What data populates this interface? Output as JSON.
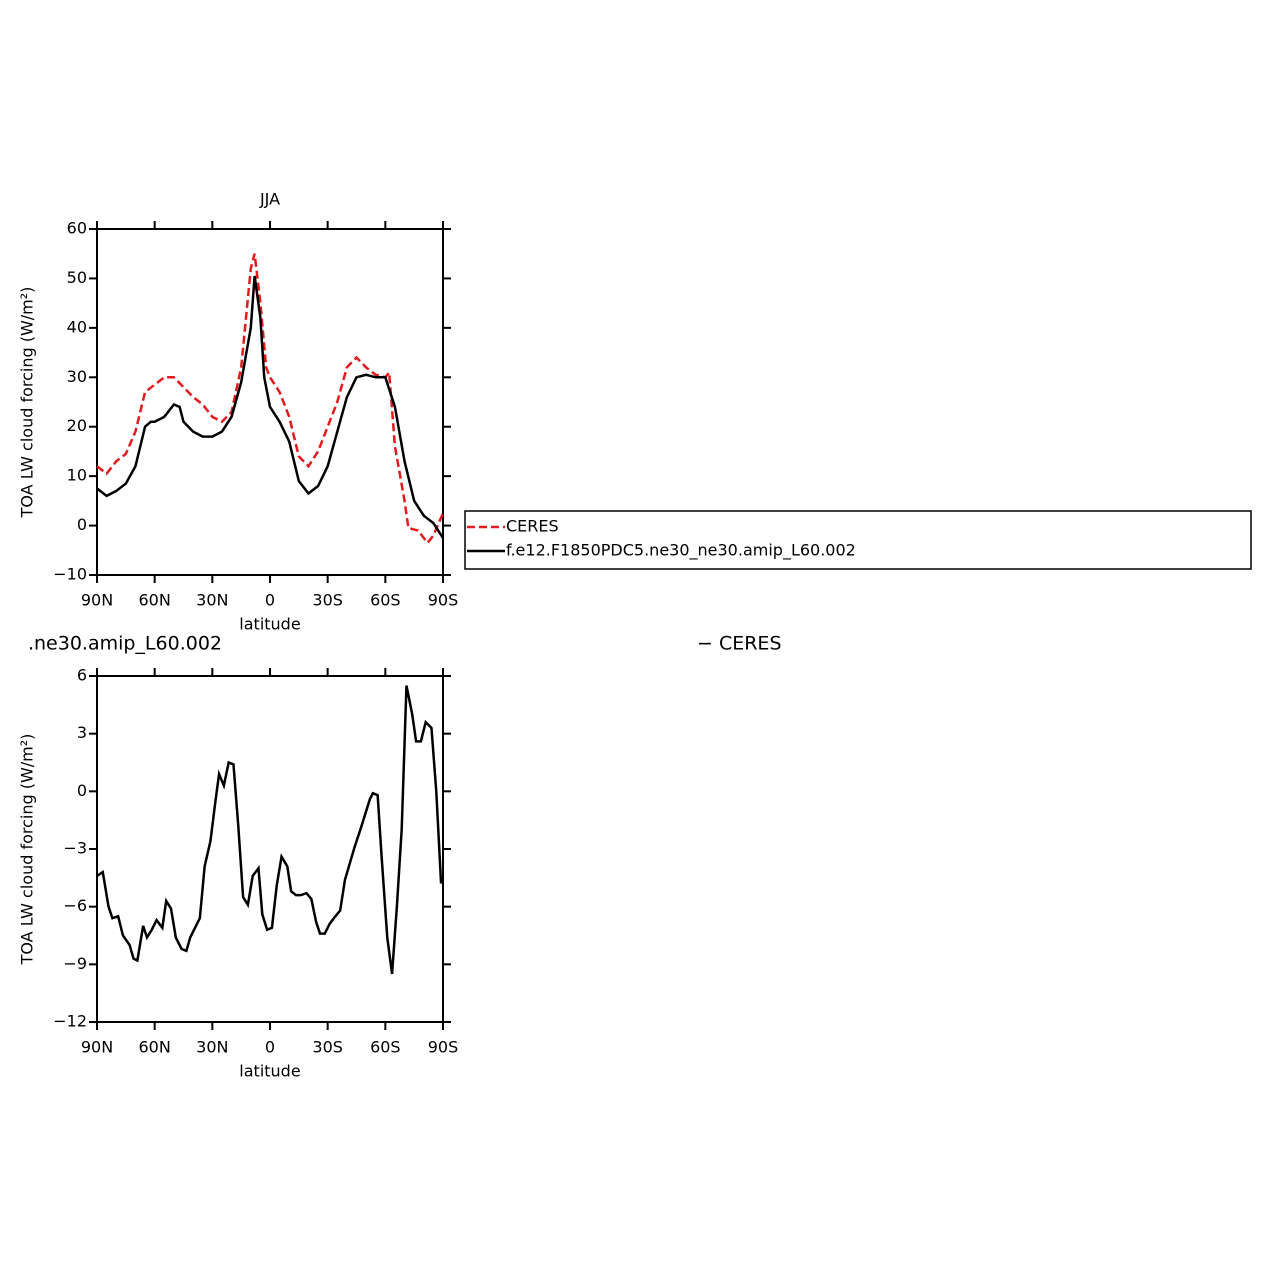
{
  "chart_data": [
    {
      "type": "line",
      "title": "JJA",
      "xlabel": "latitude",
      "ylabel": "TOA LW cloud forcing (W/m²)",
      "xlim": [
        90,
        -90
      ],
      "ylim": [
        -10,
        60
      ],
      "xticks": [
        {
          "value": 90,
          "label": "90N"
        },
        {
          "value": 60,
          "label": "60N"
        },
        {
          "value": 30,
          "label": "30N"
        },
        0,
        {
          "value": -30,
          "label": "30S"
        },
        {
          "value": -60,
          "label": "60S"
        },
        {
          "value": -90,
          "label": "90S"
        }
      ],
      "yticks": [
        {
          "value": -10,
          "label": "−10"
        },
        0,
        10,
        20,
        30,
        40,
        50,
        60
      ],
      "legend": "right",
      "series": [
        {
          "name": "CERES",
          "color": "#e41a1c",
          "dash": true,
          "x": [
            90,
            85,
            80,
            75,
            70,
            65,
            60,
            55,
            50,
            45,
            40,
            35,
            30,
            25,
            20,
            15,
            10,
            8,
            5,
            2,
            0,
            -5,
            -10,
            -15,
            -20,
            -25,
            -30,
            -35,
            -40,
            -45,
            -50,
            -55,
            -60,
            -62,
            -65,
            -70,
            -72,
            -77,
            -82,
            -85,
            -90
          ],
          "values": [
            12,
            10.5,
            13,
            14.5,
            19,
            27,
            28.5,
            30,
            30,
            28,
            26,
            24.5,
            22,
            21,
            23,
            32,
            52,
            55,
            45,
            32,
            30,
            27,
            22,
            14,
            12,
            15,
            20,
            25,
            32,
            34,
            32,
            30.5,
            30,
            31,
            16,
            5,
            -0.5,
            -1,
            -3.5,
            -2,
            2.5
          ]
        },
        {
          "name": "f.e12.F1850PDC5.ne30_ne30.amip_L60.002",
          "color": "#000000",
          "dash": false,
          "x": [
            90,
            85,
            80,
            75,
            70,
            65,
            62,
            60,
            55,
            50,
            47,
            45,
            40,
            35,
            30,
            25,
            20,
            15,
            10,
            8,
            5,
            3,
            0,
            -5,
            -10,
            -15,
            -20,
            -25,
            -30,
            -35,
            -40,
            -45,
            -50,
            -55,
            -60,
            -65,
            -70,
            -75,
            -80,
            -85,
            -90
          ],
          "values": [
            7.5,
            6,
            7,
            8.5,
            12,
            20,
            21,
            21,
            22,
            24.5,
            24,
            21,
            19,
            18,
            18,
            19,
            22,
            29,
            40,
            50.5,
            42,
            30,
            24,
            21,
            17,
            9,
            6.5,
            8,
            12,
            19,
            26,
            30,
            30.5,
            30,
            30,
            24,
            13,
            5,
            2,
            0.5,
            -2.5
          ]
        }
      ]
    },
    {
      "type": "line",
      "title_left": ".ne30.amip_L60.002",
      "title_right": "− CERES",
      "xlabel": "latitude",
      "ylabel": "TOA LW cloud forcing (W/m²)",
      "xlim": [
        90,
        -90
      ],
      "ylim": [
        -12,
        6
      ],
      "xticks": [
        {
          "value": 90,
          "label": "90N"
        },
        {
          "value": 60,
          "label": "60N"
        },
        {
          "value": 30,
          "label": "30N"
        },
        0,
        {
          "value": -30,
          "label": "30S"
        },
        {
          "value": -60,
          "label": "60S"
        },
        {
          "value": -90,
          "label": "90S"
        }
      ],
      "yticks": [
        {
          "value": -12,
          "label": "−12"
        },
        {
          "value": -9,
          "label": "−9"
        },
        {
          "value": -6,
          "label": "−6"
        },
        {
          "value": -3,
          "label": "−3"
        },
        0,
        3,
        6
      ],
      "series": [
        {
          "color": "#000000",
          "dash": false,
          "x": [
            90,
            87,
            84,
            82,
            79,
            76.5,
            73,
            71,
            69,
            66,
            64,
            61.5,
            59,
            56,
            54,
            51.5,
            49,
            46,
            43.5,
            41.5,
            36.5,
            34,
            31,
            28.5,
            26.5,
            24,
            21.5,
            19,
            16.5,
            14,
            11.5,
            9,
            6,
            4,
            1.5,
            -1,
            -3.5,
            -6,
            -9,
            -11,
            -13.5,
            -16,
            -19,
            -21.5,
            -24,
            -26,
            -28.5,
            -31,
            -34,
            -36.5,
            -39,
            -44,
            -47,
            -52,
            -53.5,
            -56,
            -58,
            -61,
            -63.5,
            -66,
            -68.5,
            -71,
            -74,
            -76,
            -78.5,
            -81,
            -84,
            -86.5,
            -89
          ],
          "values": [
            -4.4,
            -4.2,
            -6,
            -6.6,
            -6.5,
            -7.5,
            -8,
            -8.7,
            -8.8,
            -7,
            -7.6,
            -7.2,
            -6.7,
            -7.1,
            -5.7,
            -6.1,
            -7.6,
            -8.2,
            -8.3,
            -7.6,
            -6.6,
            -3.9,
            -2.6,
            -0.6,
            0.9,
            0.3,
            1.5,
            1.4,
            -1.8,
            -5.5,
            -5.9,
            -4.4,
            -4,
            -6.4,
            -7.2,
            -7.1,
            -4.9,
            -3.4,
            -3.9,
            -5.2,
            -5.4,
            -5.4,
            -5.3,
            -5.6,
            -6.8,
            -7.4,
            -7.4,
            -6.9,
            -6.5,
            -6.2,
            -4.6,
            -2.9,
            -2,
            -0.4,
            -0.1,
            -0.2,
            -3.3,
            -7.6,
            -9.5,
            -6,
            -2,
            5.5,
            4,
            2.6,
            2.6,
            3.6,
            3.3,
            0,
            -4.8
          ]
        }
      ]
    }
  ]
}
